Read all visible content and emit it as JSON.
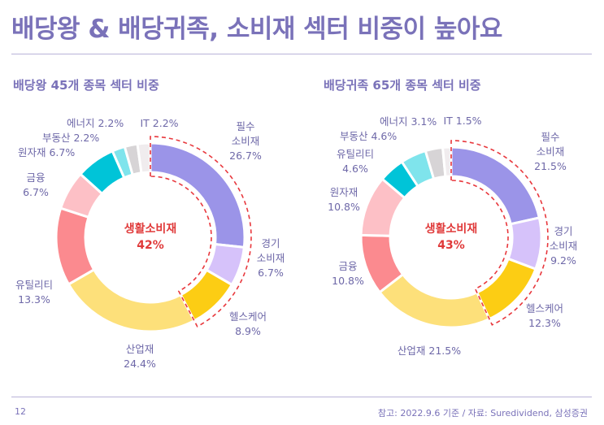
{
  "header": {
    "title": "배당왕 & 배당귀족, 소비재 섹터 비중이 높아요"
  },
  "footer": {
    "page_number": "12",
    "source": "참고: 2022.9.6 기준 / 자료: Suredividend, 삼성증권"
  },
  "colors": {
    "accent": "#7a72b9",
    "highlight": "#e03a3a"
  },
  "chart_data": [
    {
      "type": "pie",
      "title": "배당왕 45개 종목 섹터 비중",
      "center_label": [
        "생활소비재",
        "42%"
      ],
      "highlight_group": [
        "필수 소비재",
        "경기 소비재",
        "헬스케어"
      ],
      "categories": [
        "필수 소비재",
        "경기 소비재",
        "헬스케어",
        "산업재",
        "유틸리티",
        "금융",
        "원자재",
        "부동산",
        "에너지",
        "IT"
      ],
      "values": [
        26.7,
        6.7,
        8.9,
        24.4,
        13.3,
        6.7,
        6.7,
        2.2,
        2.2,
        2.2
      ],
      "colors": [
        "#9b94e8",
        "#d6c2fa",
        "#fccd14",
        "#fde07a",
        "#fb8a8f",
        "#fdc0c6",
        "#00c4d8",
        "#7fe4ec",
        "#d7d4d6",
        "#f0ecee"
      ],
      "labels": [
        [
          "필수",
          "소비재",
          "26.7%"
        ],
        [
          "경기",
          "소비재",
          "6.7%"
        ],
        [
          "헬스케어",
          "8.9%"
        ],
        [
          "산업재",
          "24.4%"
        ],
        [
          "유틸리티",
          "13.3%"
        ],
        [
          "금융",
          "6.7%"
        ],
        [
          "원자재 6.7%"
        ],
        [
          "부동산 2.2%"
        ],
        [
          "에너지 2.2%"
        ],
        [
          "IT 2.2%"
        ]
      ]
    },
    {
      "type": "pie",
      "title": "배당귀족 65개 종목 섹터 비중",
      "center_label": [
        "생활소비재",
        "43%"
      ],
      "highlight_group": [
        "필수 소비재",
        "경기 소비재",
        "헬스케어"
      ],
      "categories": [
        "필수 소비재",
        "경기 소비재",
        "헬스케어",
        "산업재",
        "금융",
        "원자재",
        "유틸리티",
        "부동산",
        "에너지",
        "IT"
      ],
      "values": [
        21.5,
        9.2,
        12.3,
        21.5,
        10.8,
        10.8,
        4.6,
        4.6,
        3.1,
        1.5
      ],
      "colors": [
        "#9b94e8",
        "#d6c2fa",
        "#fccd14",
        "#fde07a",
        "#fb8a8f",
        "#fdc0c6",
        "#00c4d8",
        "#7fe4ec",
        "#d7d4d6",
        "#f0ecee"
      ],
      "labels": [
        [
          "필수",
          "소비재",
          "21.5%"
        ],
        [
          "경기",
          "소비재",
          "9.2%"
        ],
        [
          "헬스케어",
          "12.3%"
        ],
        [
          "산업재 21.5%"
        ],
        [
          "금융",
          "10.8%"
        ],
        [
          "원자재",
          "10.8%"
        ],
        [
          "유틸리티",
          "4.6%"
        ],
        [
          "부동산 4.6%"
        ],
        [
          "에너지 3.1%"
        ],
        [
          "IT 1.5%"
        ]
      ]
    }
  ]
}
